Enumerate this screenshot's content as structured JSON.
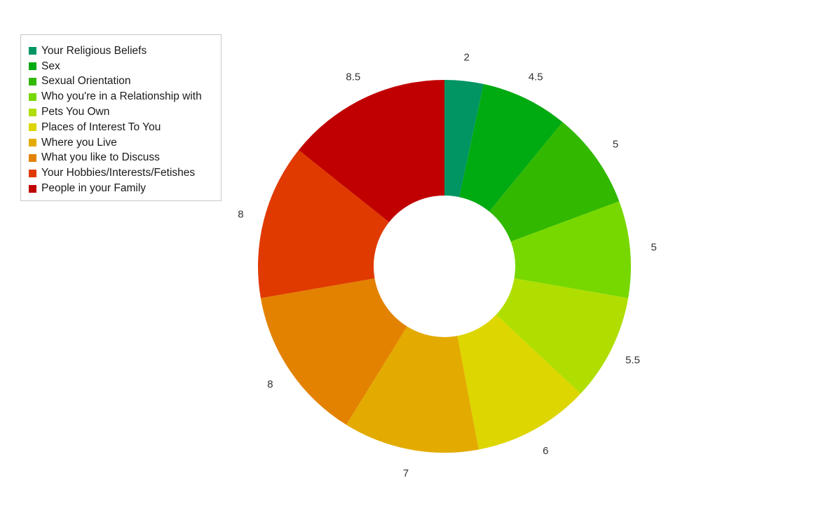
{
  "chart_data": {
    "type": "pie",
    "donut": true,
    "legend_position": "top-left",
    "categories": [
      "Your Religious Beliefs",
      "Sex",
      "Sexual Orientation",
      "Who you're in a Relationship with",
      "Pets You Own",
      "Places of Interest To You",
      "Where you Live",
      "What you like to Discuss",
      "Your Hobbies/Interests/Fetishes",
      "People in your Family"
    ],
    "values": [
      2,
      4.5,
      5,
      5,
      5.5,
      6,
      7,
      8,
      8,
      8.5
    ],
    "value_labels": [
      "2",
      "4.5",
      "5",
      "5",
      "5.5",
      "6",
      "7",
      "8",
      "8",
      "8.5"
    ],
    "colors": [
      "#009563",
      "#00aa11",
      "#33b800",
      "#77d800",
      "#b0de00",
      "#ddd600",
      "#e3ab00",
      "#e38200",
      "#e03a00",
      "#c00000"
    ]
  }
}
